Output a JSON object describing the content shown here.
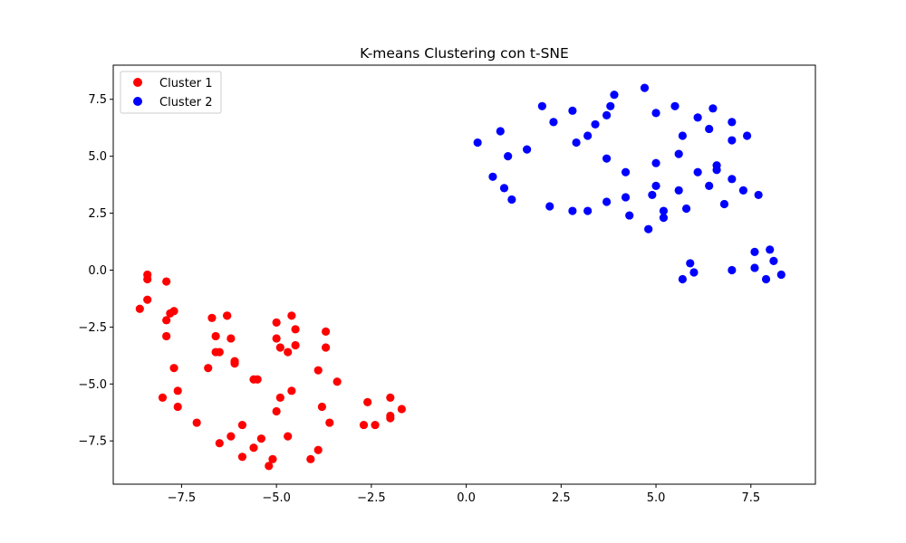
{
  "chart_data": {
    "type": "scatter",
    "title": "K-means Clustering con t-SNE",
    "xlabel": "",
    "ylabel": "",
    "xlim": [
      -9.3,
      9.2
    ],
    "ylim": [
      -9.4,
      9.0
    ],
    "xticks": [
      -7.5,
      -5.0,
      -2.5,
      0.0,
      2.5,
      5.0,
      7.5
    ],
    "xtick_labels": [
      "−7.5",
      "−5.0",
      "−2.5",
      "0.0",
      "2.5",
      "5.0",
      "7.5"
    ],
    "yticks": [
      -7.5,
      -5.0,
      -2.5,
      0.0,
      2.5,
      5.0,
      7.5
    ],
    "ytick_labels": [
      "−7.5",
      "−5.0",
      "−2.5",
      "0.0",
      "2.5",
      "5.0",
      "7.5"
    ],
    "grid": false,
    "legend_position": "upper-left",
    "series": [
      {
        "name": "Cluster 1",
        "color": "#ff0000",
        "points": [
          [
            -8.4,
            -0.2
          ],
          [
            -8.4,
            -0.4
          ],
          [
            -7.9,
            -0.5
          ],
          [
            -8.4,
            -1.3
          ],
          [
            -8.6,
            -1.7
          ],
          [
            -7.8,
            -1.9
          ],
          [
            -7.7,
            -1.8
          ],
          [
            -7.9,
            -2.2
          ],
          [
            -7.9,
            -2.9
          ],
          [
            -7.7,
            -4.3
          ],
          [
            -7.6,
            -5.3
          ],
          [
            -8.0,
            -5.6
          ],
          [
            -7.6,
            -6.0
          ],
          [
            -7.1,
            -6.7
          ],
          [
            -6.7,
            -2.1
          ],
          [
            -6.6,
            -2.9
          ],
          [
            -6.5,
            -3.6
          ],
          [
            -6.3,
            -2.0
          ],
          [
            -6.2,
            -3.0
          ],
          [
            -6.1,
            -4.0
          ],
          [
            -6.1,
            -4.1
          ],
          [
            -6.8,
            -4.3
          ],
          [
            -5.6,
            -4.8
          ],
          [
            -5.5,
            -4.8
          ],
          [
            -5.9,
            -6.8
          ],
          [
            -6.5,
            -7.6
          ],
          [
            -6.2,
            -7.3
          ],
          [
            -5.9,
            -8.2
          ],
          [
            -5.6,
            -7.8
          ],
          [
            -5.4,
            -7.4
          ],
          [
            -5.2,
            -8.6
          ],
          [
            -5.1,
            -8.3
          ],
          [
            -5.0,
            -6.2
          ],
          [
            -4.9,
            -5.6
          ],
          [
            -5.0,
            -2.3
          ],
          [
            -5.0,
            -3.0
          ],
          [
            -4.9,
            -3.4
          ],
          [
            -4.7,
            -3.6
          ],
          [
            -4.6,
            -2.0
          ],
          [
            -4.5,
            -2.6
          ],
          [
            -4.5,
            -3.3
          ],
          [
            -4.6,
            -5.3
          ],
          [
            -4.7,
            -7.3
          ],
          [
            -4.1,
            -8.3
          ],
          [
            -3.9,
            -7.9
          ],
          [
            -3.9,
            -4.4
          ],
          [
            -3.7,
            -2.7
          ],
          [
            -3.7,
            -3.4
          ],
          [
            -3.8,
            -6.0
          ],
          [
            -3.6,
            -6.7
          ],
          [
            -3.4,
            -4.9
          ],
          [
            -2.7,
            -6.8
          ],
          [
            -2.6,
            -5.8
          ],
          [
            -2.4,
            -6.8
          ],
          [
            -2.0,
            -5.6
          ],
          [
            -2.0,
            -6.4
          ],
          [
            -2.0,
            -6.5
          ],
          [
            -1.7,
            -6.1
          ],
          [
            -6.3,
            -2.0
          ],
          [
            -6.6,
            -3.6
          ]
        ]
      },
      {
        "name": "Cluster 2",
        "color": "#0000ff",
        "points": [
          [
            0.3,
            5.6
          ],
          [
            0.7,
            4.1
          ],
          [
            0.9,
            6.1
          ],
          [
            1.0,
            3.6
          ],
          [
            1.1,
            5.0
          ],
          [
            1.2,
            3.1
          ],
          [
            1.6,
            5.3
          ],
          [
            2.0,
            7.2
          ],
          [
            2.3,
            6.5
          ],
          [
            2.2,
            2.8
          ],
          [
            2.8,
            7.0
          ],
          [
            2.9,
            5.6
          ],
          [
            2.8,
            2.6
          ],
          [
            3.2,
            5.9
          ],
          [
            3.2,
            2.6
          ],
          [
            3.4,
            6.4
          ],
          [
            3.7,
            6.8
          ],
          [
            3.7,
            4.9
          ],
          [
            3.7,
            3.0
          ],
          [
            3.8,
            7.2
          ],
          [
            3.9,
            7.7
          ],
          [
            4.2,
            4.3
          ],
          [
            4.2,
            3.2
          ],
          [
            4.3,
            2.4
          ],
          [
            4.7,
            8.0
          ],
          [
            4.8,
            1.8
          ],
          [
            5.0,
            6.9
          ],
          [
            5.0,
            4.7
          ],
          [
            5.0,
            3.7
          ],
          [
            4.9,
            3.3
          ],
          [
            5.2,
            2.6
          ],
          [
            5.2,
            2.3
          ],
          [
            5.5,
            7.2
          ],
          [
            5.6,
            5.1
          ],
          [
            5.6,
            3.5
          ],
          [
            5.7,
            5.9
          ],
          [
            5.8,
            2.7
          ],
          [
            5.9,
            0.3
          ],
          [
            6.0,
            -0.1
          ],
          [
            6.1,
            6.7
          ],
          [
            6.1,
            4.3
          ],
          [
            5.7,
            -0.4
          ],
          [
            6.4,
            6.2
          ],
          [
            6.5,
            7.1
          ],
          [
            6.4,
            3.7
          ],
          [
            6.6,
            4.6
          ],
          [
            6.6,
            4.4
          ],
          [
            6.8,
            2.9
          ],
          [
            7.0,
            6.5
          ],
          [
            7.0,
            5.7
          ],
          [
            7.0,
            4.0
          ],
          [
            7.0,
            0.0
          ],
          [
            7.3,
            3.5
          ],
          [
            7.4,
            5.9
          ],
          [
            7.6,
            0.8
          ],
          [
            7.7,
            3.3
          ],
          [
            7.6,
            0.1
          ],
          [
            7.9,
            -0.4
          ],
          [
            8.0,
            0.9
          ],
          [
            8.1,
            0.4
          ],
          [
            8.3,
            -0.2
          ]
        ]
      }
    ]
  }
}
